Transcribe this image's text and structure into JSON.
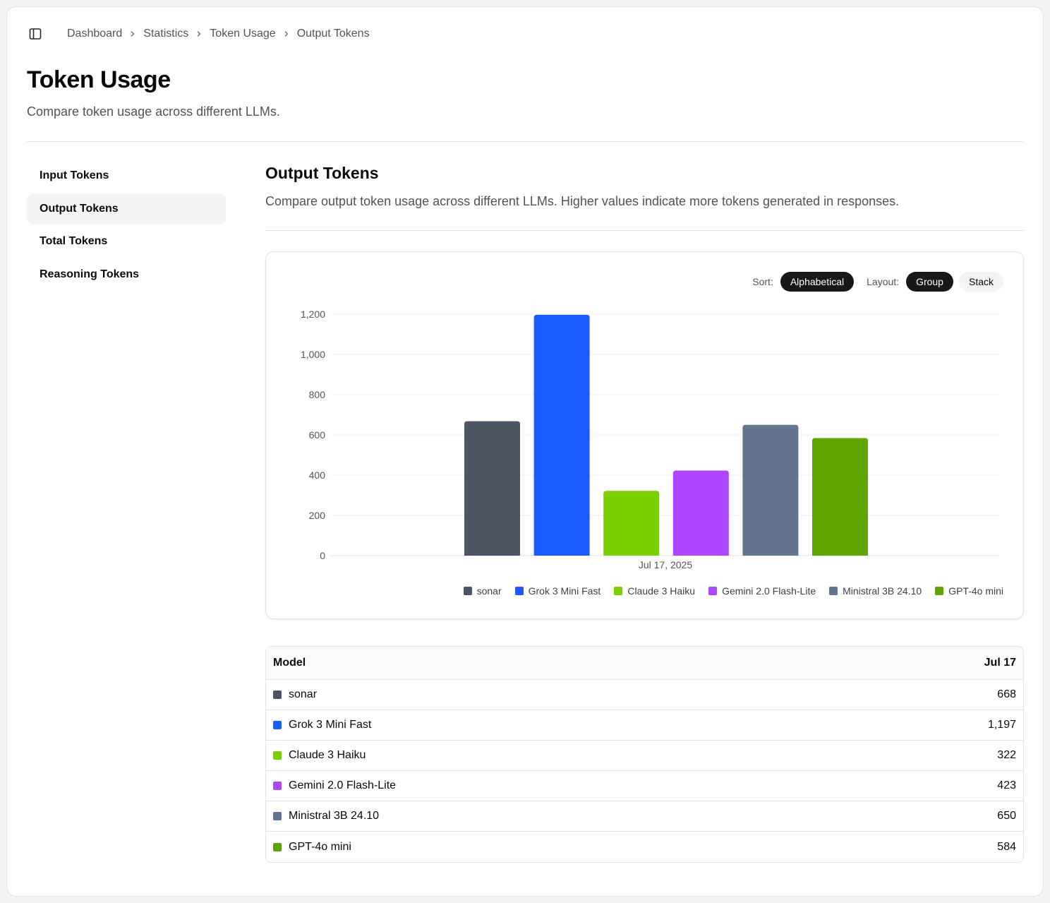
{
  "breadcrumb": [
    "Dashboard",
    "Statistics",
    "Token Usage",
    "Output Tokens"
  ],
  "page": {
    "title": "Token Usage",
    "subtitle": "Compare token usage across different LLMs."
  },
  "sidenav": {
    "items": [
      {
        "label": "Input Tokens",
        "active": false
      },
      {
        "label": "Output Tokens",
        "active": true
      },
      {
        "label": "Total Tokens",
        "active": false
      },
      {
        "label": "Reasoning Tokens",
        "active": false
      }
    ]
  },
  "section": {
    "title": "Output Tokens",
    "description": "Compare output token usage across different LLMs. Higher values indicate more tokens generated in responses."
  },
  "controls": {
    "sort_label": "Sort:",
    "sort_value": "Alphabetical",
    "layout_label": "Layout:",
    "layout_options": [
      "Group",
      "Stack"
    ],
    "layout_selected": "Group"
  },
  "chart_data": {
    "type": "bar",
    "categories": [
      "Jul 17, 2025"
    ],
    "series": [
      {
        "name": "sonar",
        "values": [
          668
        ],
        "color": "#4b5563"
      },
      {
        "name": "Grok 3 Mini Fast",
        "values": [
          1197
        ],
        "color": "#1a5cff"
      },
      {
        "name": "Claude 3 Haiku",
        "values": [
          322
        ],
        "color": "#7ccf00"
      },
      {
        "name": "Gemini 2.0 Flash-Lite",
        "values": [
          423
        ],
        "color": "#ad46ff"
      },
      {
        "name": "Ministral 3B 24.10",
        "values": [
          650
        ],
        "color": "#62748e"
      },
      {
        "name": "GPT-4o mini",
        "values": [
          584
        ],
        "color": "#5ea500"
      }
    ],
    "ylim": [
      0,
      1200
    ],
    "yticks": [
      "0",
      "200",
      "400",
      "600",
      "800",
      "1,000",
      "1,200"
    ],
    "grid": true,
    "legend": "bottom-right"
  },
  "table": {
    "header_model": "Model",
    "header_date": "Jul 17",
    "rows": [
      {
        "model": "sonar",
        "value": "668",
        "color": "#4b5563"
      },
      {
        "model": "Grok 3 Mini Fast",
        "value": "1,197",
        "color": "#1a5cff"
      },
      {
        "model": "Claude 3 Haiku",
        "value": "322",
        "color": "#7ccf00"
      },
      {
        "model": "Gemini 2.0 Flash-Lite",
        "value": "423",
        "color": "#ad46ff"
      },
      {
        "model": "Ministral 3B 24.10",
        "value": "650",
        "color": "#62748e"
      },
      {
        "model": "GPT-4o mini",
        "value": "584",
        "color": "#5ea500"
      }
    ]
  }
}
